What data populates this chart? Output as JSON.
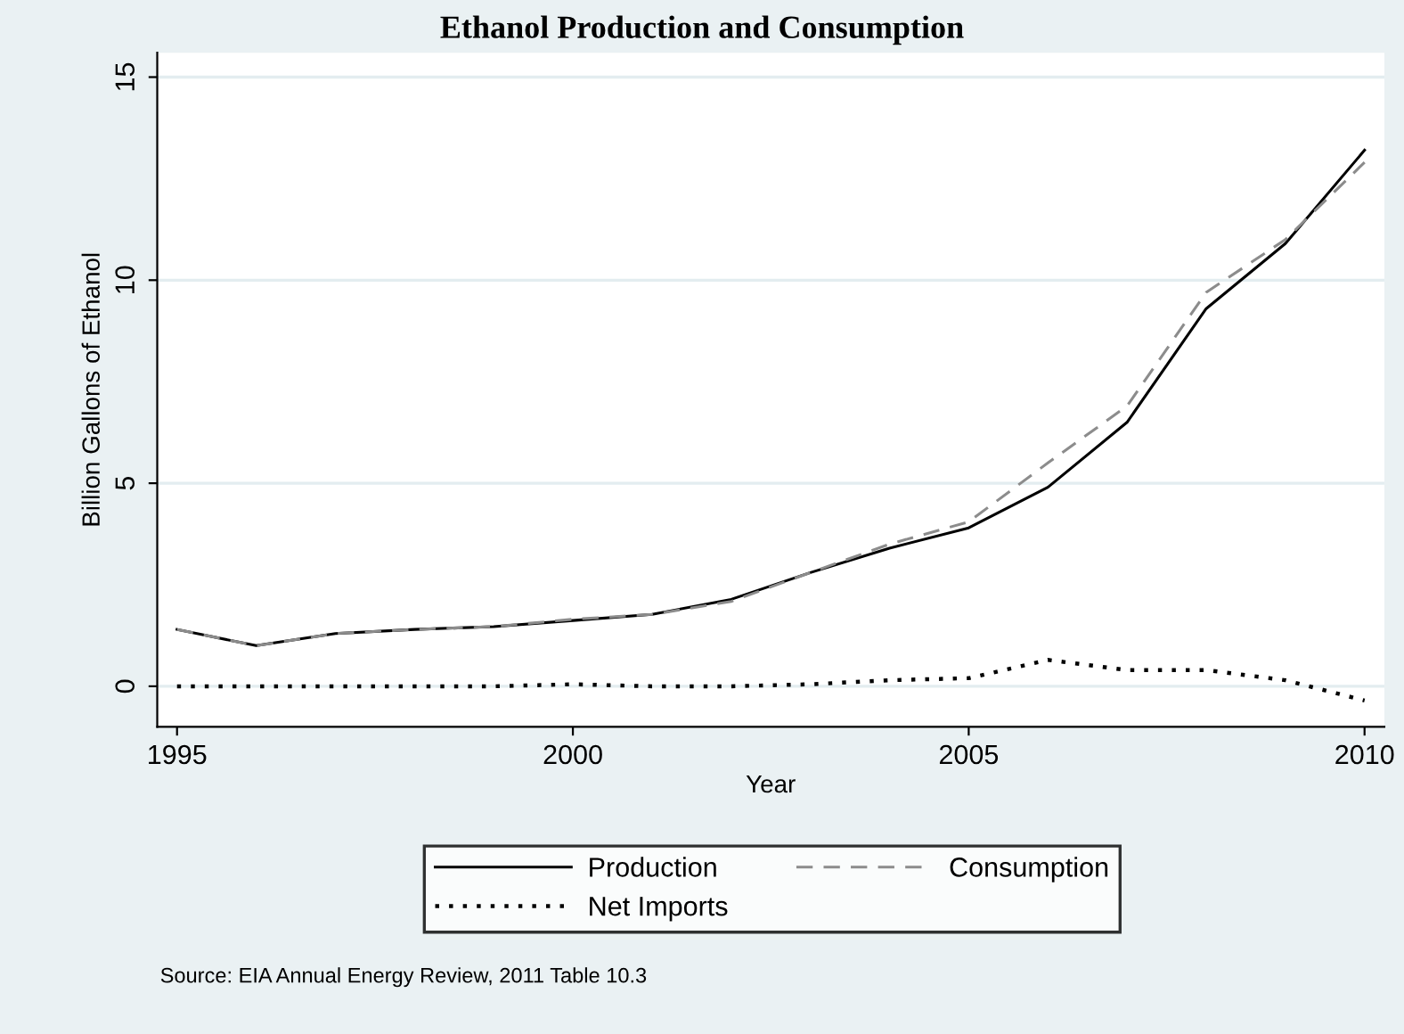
{
  "chart_data": {
    "type": "line",
    "title": "Ethanol Production and Consumption",
    "xlabel": "Year",
    "ylabel": "Billion Gallons of Ethanol",
    "x": [
      1995,
      1996,
      1997,
      1998,
      1999,
      2000,
      2001,
      2002,
      2003,
      2004,
      2005,
      2006,
      2007,
      2008,
      2009,
      2010
    ],
    "series": [
      {
        "name": "Production",
        "color": "#000000",
        "line_style": "solid",
        "values": [
          1.4,
          1.0,
          1.3,
          1.4,
          1.47,
          1.62,
          1.77,
          2.14,
          2.8,
          3.4,
          3.9,
          4.9,
          6.5,
          9.3,
          10.9,
          13.2
        ]
      },
      {
        "name": "Consumption",
        "color": "#8c8c8c",
        "line_style": "dashed",
        "values": [
          1.4,
          1.0,
          1.3,
          1.4,
          1.47,
          1.65,
          1.77,
          2.09,
          2.8,
          3.5,
          4.05,
          5.5,
          6.9,
          9.7,
          11.0,
          12.9
        ]
      },
      {
        "name": "Net Imports",
        "color": "#000000",
        "line_style": "dotted",
        "values": [
          0,
          0,
          0,
          0,
          0,
          0.05,
          0,
          0,
          0.05,
          0.15,
          0.2,
          0.65,
          0.4,
          0.4,
          0.15,
          -0.35
        ]
      }
    ],
    "xlim": [
      1994.75,
      2010.25
    ],
    "ylim": [
      -1,
      15.6
    ],
    "xticks": [
      1995,
      2000,
      2005,
      2010
    ],
    "yticks": [
      0,
      5,
      10,
      15
    ],
    "grid": "y",
    "legend": "bottom",
    "marker": "none",
    "annotations": [
      "Source: EIA Annual Energy Review, 2011 Table 10.3"
    ]
  }
}
